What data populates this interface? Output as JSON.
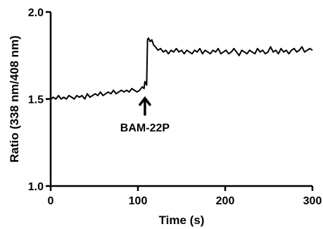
{
  "chart_data": {
    "type": "line",
    "xlabel": "Time (s)",
    "ylabel": "Ratio (338 nm/408 nm)",
    "xlim": [
      0,
      300
    ],
    "ylim": [
      1.0,
      2.0
    ],
    "x_ticks": [
      0,
      100,
      200,
      300
    ],
    "x_tick_labels": [
      "0",
      "100",
      "200",
      "300"
    ],
    "y_ticks": [
      1.0,
      1.5,
      2.0
    ],
    "y_tick_labels": [
      "1.0",
      "1.5",
      "2.0"
    ],
    "grid": false,
    "legend": false,
    "series": [
      {
        "color": "#000000",
        "x": [
          0,
          3,
          6,
          9,
          12,
          15,
          18,
          21,
          24,
          27,
          30,
          33,
          36,
          39,
          42,
          45,
          48,
          51,
          54,
          57,
          60,
          63,
          66,
          69,
          72,
          75,
          78,
          81,
          84,
          87,
          90,
          93,
          96,
          99,
          102,
          105,
          107,
          108,
          110,
          111,
          112,
          114,
          116,
          118,
          120,
          123,
          126,
          129,
          132,
          135,
          138,
          141,
          144,
          147,
          150,
          153,
          156,
          159,
          162,
          165,
          168,
          171,
          174,
          177,
          180,
          183,
          186,
          189,
          192,
          195,
          198,
          201,
          204,
          207,
          210,
          213,
          216,
          219,
          222,
          225,
          228,
          231,
          234,
          237,
          240,
          243,
          246,
          249,
          252,
          255,
          258,
          261,
          264,
          267,
          270,
          273,
          276,
          279,
          282,
          285,
          288,
          291,
          294,
          297,
          300
        ],
        "y": [
          1.5,
          1.51,
          1.5,
          1.52,
          1.5,
          1.51,
          1.5,
          1.52,
          1.51,
          1.5,
          1.52,
          1.51,
          1.52,
          1.5,
          1.53,
          1.51,
          1.52,
          1.53,
          1.52,
          1.54,
          1.52,
          1.53,
          1.54,
          1.53,
          1.55,
          1.53,
          1.54,
          1.55,
          1.54,
          1.55,
          1.54,
          1.56,
          1.55,
          1.54,
          1.55,
          1.57,
          1.56,
          1.6,
          1.58,
          1.84,
          1.85,
          1.83,
          1.84,
          1.81,
          1.8,
          1.78,
          1.79,
          1.77,
          1.78,
          1.76,
          1.78,
          1.77,
          1.79,
          1.77,
          1.78,
          1.76,
          1.78,
          1.77,
          1.76,
          1.78,
          1.77,
          1.79,
          1.76,
          1.78,
          1.77,
          1.76,
          1.78,
          1.77,
          1.79,
          1.76,
          1.77,
          1.78,
          1.76,
          1.77,
          1.79,
          1.77,
          1.75,
          1.78,
          1.77,
          1.76,
          1.78,
          1.77,
          1.76,
          1.79,
          1.77,
          1.78,
          1.76,
          1.77,
          1.8,
          1.77,
          1.78,
          1.76,
          1.79,
          1.77,
          1.78,
          1.76,
          1.78,
          1.79,
          1.77,
          1.78,
          1.8,
          1.77,
          1.78,
          1.79,
          1.78
        ]
      }
    ],
    "annotation": {
      "text": "BAM-22P",
      "x": 108,
      "y": 1.5
    }
  }
}
